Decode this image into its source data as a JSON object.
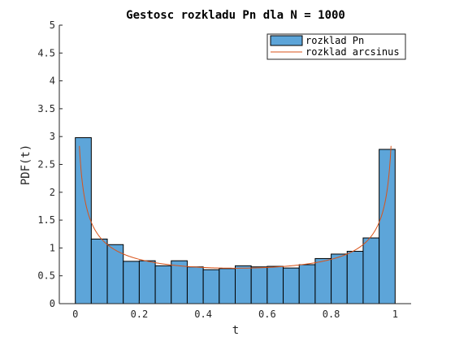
{
  "chart_data": {
    "type": "bar",
    "title": "Gestosc rozkladu Pn dla N = 1000",
    "xlabel": "t",
    "ylabel": "PDF(t)",
    "xlim": [
      -0.05,
      1.05
    ],
    "ylim": [
      0,
      5
    ],
    "xticks": [
      "0",
      "0.2",
      "0.4",
      "0.6",
      "0.8",
      "1"
    ],
    "yticks": [
      "0",
      "0.5",
      "1",
      "1.5",
      "2",
      "2.5",
      "3",
      "3.5",
      "4",
      "4.5",
      "5"
    ],
    "legend_position": "top-right",
    "bin_width": 0.05,
    "series": [
      {
        "name": "rozklad Pn",
        "type": "histogram",
        "color": "#5DA5D9",
        "bin_starts": [
          0,
          0.05,
          0.1,
          0.15,
          0.2,
          0.25,
          0.3,
          0.35,
          0.4,
          0.45,
          0.5,
          0.55,
          0.6,
          0.65,
          0.7,
          0.75,
          0.8,
          0.85,
          0.9,
          0.95
        ],
        "values": [
          2.98,
          1.16,
          1.06,
          0.76,
          0.77,
          0.68,
          0.77,
          0.66,
          0.61,
          0.63,
          0.68,
          0.66,
          0.67,
          0.64,
          0.7,
          0.81,
          0.89,
          0.94,
          1.18,
          2.77
        ]
      },
      {
        "name": "rozklad arcsinus",
        "type": "line",
        "color": "#D95319",
        "function": "1/(pi*sqrt(t*(1-t)))"
      }
    ]
  }
}
